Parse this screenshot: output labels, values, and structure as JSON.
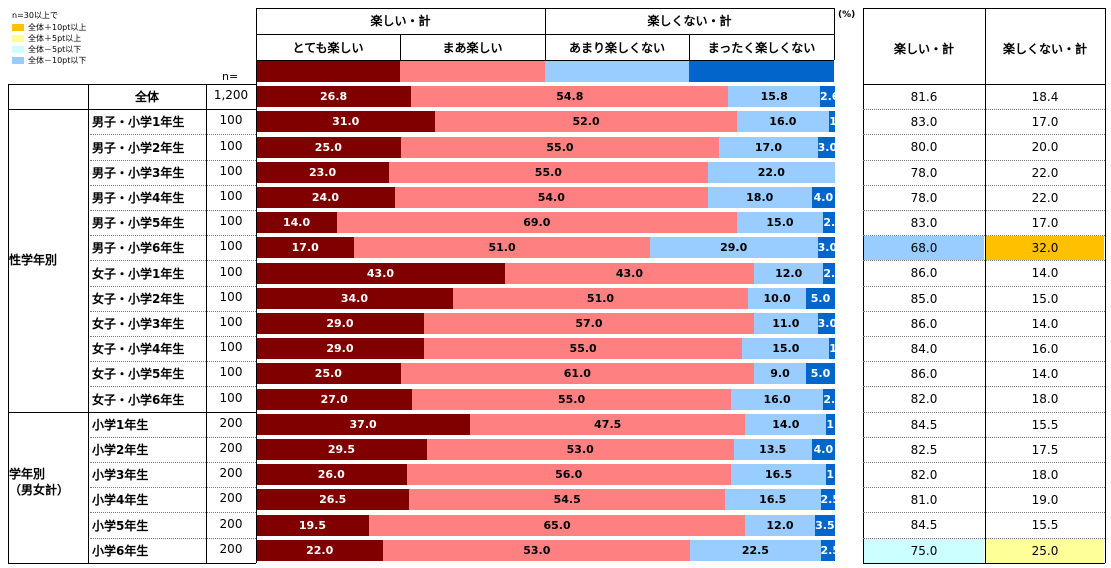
{
  "legend": {
    "note": "n=30以上で",
    "items": [
      {
        "label": "全体＋10pt以上",
        "color": "#ffc000"
      },
      {
        "label": "全体＋5pt以上",
        "color": "#ffff99"
      },
      {
        "label": "全体－5pt以下",
        "color": "#ccffff"
      },
      {
        "label": "全体－10pt以下",
        "color": "#99ccff"
      }
    ]
  },
  "header": {
    "tanoshii_kei": "楽しい・計",
    "tanoshikunai_kei": "楽しくない・計",
    "cat1": "とても楽しい",
    "cat2": "まあ楽しい",
    "cat3": "あまり楽しくない",
    "cat4": "まったく楽しくない",
    "unit": "(%)",
    "n_label": "n=",
    "col_tanoshii": "楽しい・計",
    "col_tanoshikunai": "楽しくない・計"
  },
  "groups": {
    "sex_grade": "性学年別",
    "grade": "学年別\n（男女計）"
  },
  "chart_data": {
    "type": "bar",
    "stacked": true,
    "orientation": "horizontal",
    "unit": "(%)",
    "categories": [
      "全体",
      "男子・小学1年生",
      "男子・小学2年生",
      "男子・小学3年生",
      "男子・小学4年生",
      "男子・小学5年生",
      "男子・小学6年生",
      "女子・小学1年生",
      "女子・小学2年生",
      "女子・小学3年生",
      "女子・小学4年生",
      "女子・小学5年生",
      "女子・小学6年生",
      "小学1年生",
      "小学2年生",
      "小学3年生",
      "小学4年生",
      "小学5年生",
      "小学6年生"
    ],
    "n": [
      "1,200",
      "100",
      "100",
      "100",
      "100",
      "100",
      "100",
      "100",
      "100",
      "100",
      "100",
      "100",
      "100",
      "200",
      "200",
      "200",
      "200",
      "200",
      "200"
    ],
    "series": [
      {
        "name": "とても楽しい",
        "color": "#800000",
        "values": [
          26.8,
          31.0,
          25.0,
          23.0,
          24.0,
          14.0,
          17.0,
          43.0,
          34.0,
          29.0,
          29.0,
          25.0,
          27.0,
          37.0,
          29.5,
          26.0,
          26.5,
          19.5,
          22.0
        ]
      },
      {
        "name": "まあ楽しい",
        "color": "#ff8080",
        "values": [
          54.8,
          52.0,
          55.0,
          55.0,
          54.0,
          69.0,
          51.0,
          43.0,
          51.0,
          57.0,
          55.0,
          61.0,
          55.0,
          47.5,
          53.0,
          56.0,
          54.5,
          65.0,
          53.0
        ]
      },
      {
        "name": "あまり楽しくない",
        "color": "#99ccff",
        "values": [
          15.8,
          16.0,
          17.0,
          22.0,
          18.0,
          15.0,
          29.0,
          12.0,
          10.0,
          11.0,
          15.0,
          9.0,
          16.0,
          14.0,
          13.5,
          16.5,
          16.5,
          12.0,
          22.5
        ]
      },
      {
        "name": "まったく楽しくない",
        "color": "#0066cc",
        "values": [
          2.6,
          1.0,
          3.0,
          0.0,
          4.0,
          2.0,
          3.0,
          2.0,
          5.0,
          3.0,
          1.0,
          5.0,
          2.0,
          1.5,
          4.0,
          1.5,
          2.5,
          3.5,
          2.5
        ]
      }
    ],
    "totals": {
      "tanoshii_kei": [
        "81.6",
        "83.0",
        "80.0",
        "78.0",
        "78.0",
        "83.0",
        "68.0",
        "86.0",
        "85.0",
        "86.0",
        "84.0",
        "86.0",
        "82.0",
        "84.5",
        "82.5",
        "82.0",
        "81.0",
        "84.5",
        "75.0"
      ],
      "tanoshikunai_kei": [
        "18.4",
        "17.0",
        "20.0",
        "22.0",
        "22.0",
        "17.0",
        "32.0",
        "14.0",
        "15.0",
        "14.0",
        "16.0",
        "14.0",
        "18.0",
        "15.5",
        "17.5",
        "18.0",
        "19.0",
        "15.5",
        "25.0"
      ],
      "tanoshii_highlight": [
        null,
        null,
        null,
        null,
        null,
        null,
        "#99ccff",
        null,
        null,
        null,
        null,
        null,
        null,
        null,
        null,
        null,
        null,
        null,
        "#ccffff"
      ],
      "tanoshikunai_highlight": [
        null,
        null,
        null,
        null,
        null,
        null,
        "#ffc000",
        null,
        null,
        null,
        null,
        null,
        null,
        null,
        null,
        null,
        null,
        null,
        "#ffff99"
      ]
    }
  }
}
